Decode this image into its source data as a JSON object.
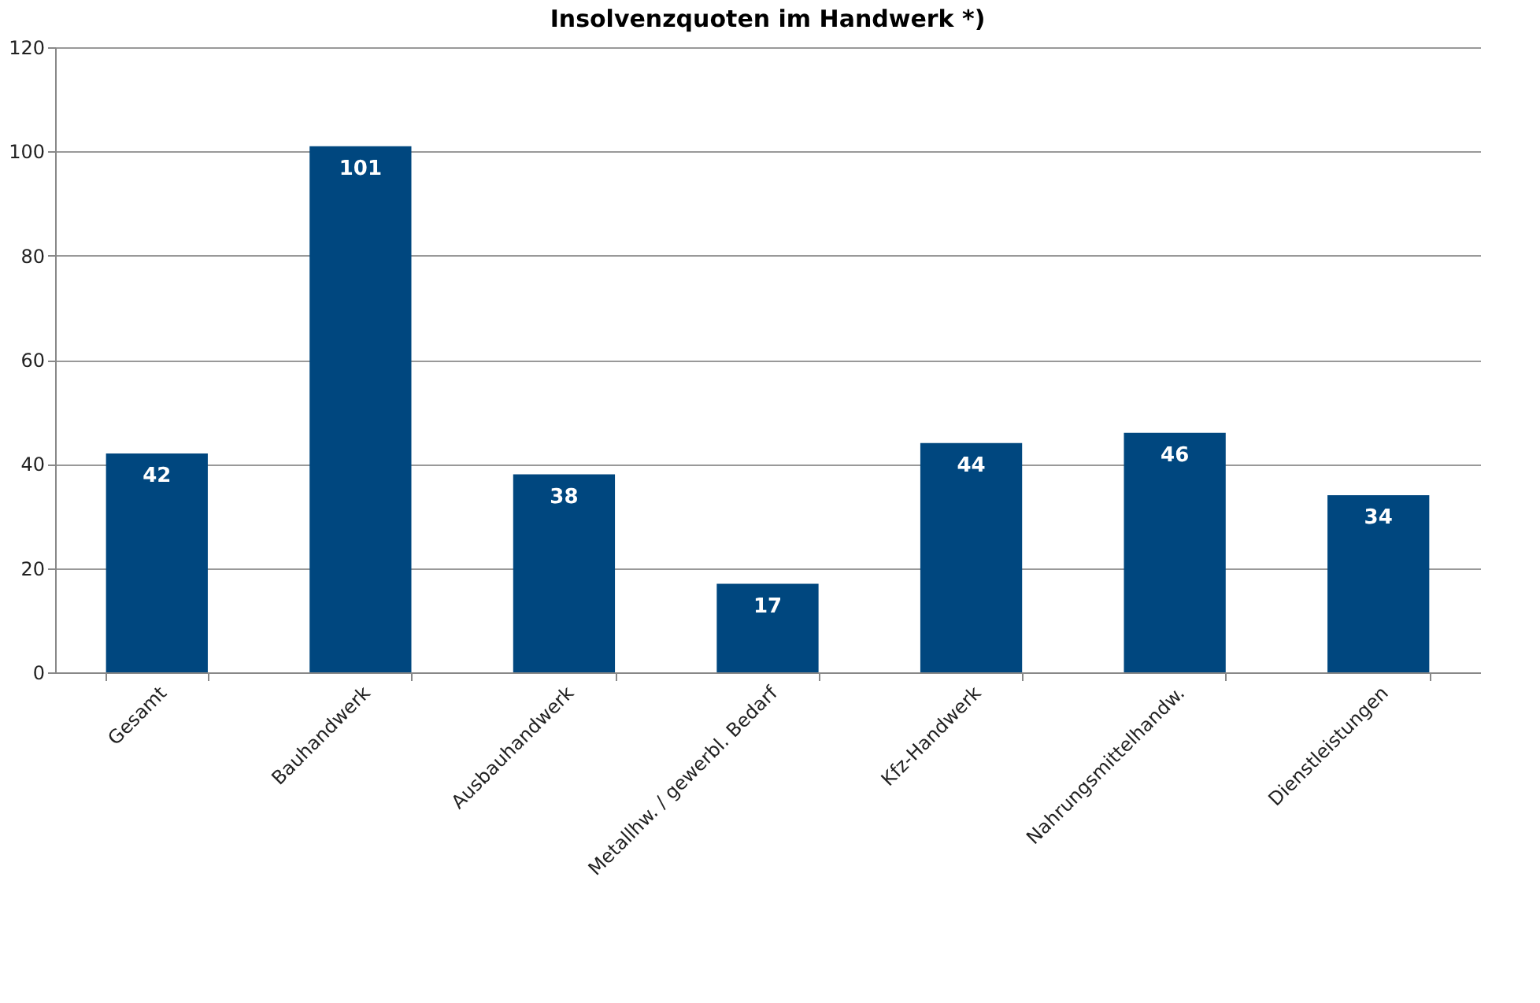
{
  "chart_data": {
    "type": "bar",
    "title": "Insolvenzquoten im Handwerk *)",
    "categories": [
      "Gesamt",
      "Bauhandwerk",
      "Ausbauhandwerk",
      "Metallhw. / gewerbl. Bedarf",
      "Kfz-Handwerk",
      "Nahrungsmittelhandw.",
      "Dienstleistungen"
    ],
    "values": [
      42,
      101,
      38,
      17,
      44,
      46,
      34
    ],
    "color": "#00477f",
    "ylim": [
      0,
      120
    ],
    "yticks": [
      0,
      20,
      40,
      60,
      80,
      100,
      120
    ],
    "grid": "y",
    "data_labels": true
  }
}
